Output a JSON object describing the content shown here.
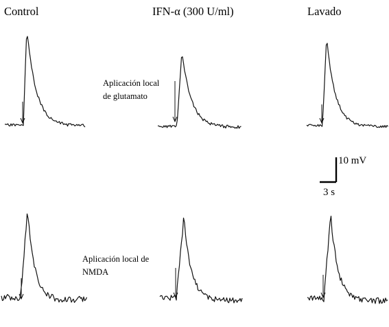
{
  "figure": {
    "columns": {
      "control": "Control",
      "ifn": "IFN-α (300 U/ml)",
      "washout": "Lavado"
    },
    "annotations": {
      "glutamate": [
        "Aplicación local",
        "de glutamato"
      ],
      "nmda": [
        "Aplicación local de",
        "NMDA"
      ]
    },
    "scale_bar": {
      "vertical_label": "10 mV",
      "horizontal_label": "3 s"
    }
  }
}
